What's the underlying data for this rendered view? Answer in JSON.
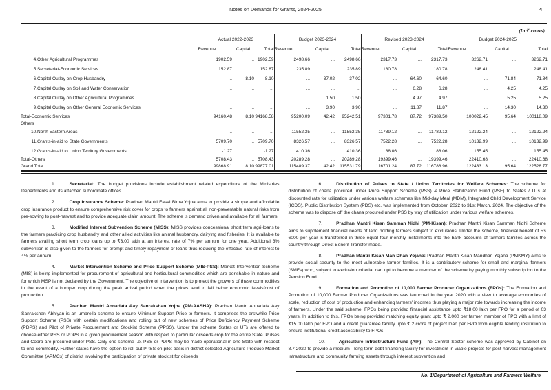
{
  "header": {
    "title": "Notes on Demands for Grants, 2024-2025",
    "page_number": "4"
  },
  "table": {
    "unit_note": "(In ₹ crores)",
    "groups": [
      "Actual 2022-2023",
      "Budget 2023-2024",
      "Revised 2023-2024",
      "Budget 2024-2025"
    ],
    "sub_headers": [
      "Revenue",
      "Capital",
      "Total"
    ],
    "rows": [
      {
        "num": "4.",
        "label": "Other Agricultural Programmes",
        "type": "item",
        "values": [
          "1902.59",
          "...",
          "1902.59",
          "2498.66",
          "...",
          "2498.66",
          "2317.73",
          "...",
          "2317.73",
          "3262.71",
          "...",
          "3262.71"
        ]
      },
      {
        "num": "5.",
        "label": "Secretariat-Economic Services",
        "type": "item",
        "values": [
          "152.87",
          "...",
          "152.87",
          "235.89",
          "...",
          "235.89",
          "180.78",
          "...",
          "180.78",
          "248.41",
          "...",
          "248.41"
        ]
      },
      {
        "num": "6.",
        "label": "Capital Outlay on Crop Husbandry",
        "type": "item",
        "values": [
          "...",
          "8.10",
          "8.10",
          "...",
          "37.02",
          "37.02",
          "...",
          "64.60",
          "64.60",
          "...",
          "71.84",
          "71.84"
        ]
      },
      {
        "num": "7.",
        "label": "Capital Outlay on Soil and Water Conservation",
        "type": "item",
        "values": [
          "...",
          "...",
          "...",
          "...",
          "...",
          "...",
          "...",
          "6.28",
          "6.28",
          "...",
          "4.25",
          "4.25"
        ]
      },
      {
        "num": "8.",
        "label": "Capital Outlay on Other Agricultural Programmes",
        "type": "item",
        "values": [
          "...",
          "...",
          "...",
          "...",
          "1.50",
          "1.50",
          "...",
          "4.97",
          "4.97",
          "...",
          "5.25",
          "5.25"
        ]
      },
      {
        "num": "9.",
        "label": "Capital Outlay on Other General Economic Services",
        "type": "item",
        "values": [
          "...",
          "...",
          "...",
          "...",
          "3.90",
          "3.90",
          "...",
          "11.87",
          "11.87",
          "...",
          "14.30",
          "14.30"
        ]
      },
      {
        "num": "",
        "label": "Total-Economic Services",
        "type": "total",
        "values": [
          "94160.48",
          "8.10",
          "94168.58",
          "95200.09",
          "42.42",
          "95242.51",
          "97301.78",
          "87.72",
          "97389.50",
          "100022.45",
          "95.64",
          "100118.09"
        ]
      },
      {
        "num": "",
        "label": "Others",
        "type": "section",
        "values": [
          "",
          "",
          "",
          "",
          "",
          "",
          "",
          "",
          "",
          "",
          "",
          ""
        ]
      },
      {
        "num": "10.",
        "label": "North Eastern Areas",
        "type": "item2",
        "values": [
          "...",
          "...",
          "...",
          "11552.35",
          "...",
          "11552.35",
          "11789.12",
          "...",
          "11789.12",
          "12122.24",
          "...",
          "12122.24"
        ]
      },
      {
        "num": "11.",
        "label": "Grants-in-aid to State Governments",
        "type": "item2",
        "values": [
          "5709.70",
          "...",
          "5709.70",
          "8326.57",
          "...",
          "8326.57",
          "7522.28",
          "...",
          "7522.28",
          "10132.99",
          "...",
          "10132.99"
        ]
      },
      {
        "num": "12.",
        "label": "Grants-in-aid to Union Territory Governments",
        "type": "item2",
        "values": [
          "-1.27",
          "...",
          "-1.27",
          "410.36",
          "...",
          "410.36",
          "88.06",
          "...",
          "88.06",
          "155.45",
          "...",
          "155.45"
        ]
      },
      {
        "num": "",
        "label": "Total-Others",
        "type": "tight",
        "values": [
          "5708.43",
          "...",
          "5708.43",
          "20289.28",
          "...",
          "20289.28",
          "19399.46",
          "...",
          "19399.46",
          "22410.68",
          "...",
          "22410.68"
        ]
      },
      {
        "num": "",
        "label": "Grand Total",
        "type": "grand",
        "values": [
          "99868.91",
          "8.10",
          "99877.01",
          "115489.37",
          "42.42",
          "115531.79",
          "116701.24",
          "87.72",
          "116788.96",
          "122433.13",
          "95.64",
          "122528.77"
        ]
      }
    ]
  },
  "paragraphs": {
    "left": [
      {
        "num": "1.",
        "title": "Secretariat:",
        "text": "The budget provisions include establishment related expenditure of the Ministries Departments and its attached subordinate offices"
      },
      {
        "num": "2.",
        "title": "Crop Insurance Scheme:",
        "text": "Pradhan Mantri Fasal Bima Yojna aims to provide a simple and affordable crop insurance product to ensure comprehensive risk cover for crops to farmers against all non-preventable natural risks from pre-sowing to post-harvest and to provide adequate claim amount. The scheme is demand driven and available for all farmers."
      },
      {
        "num": "3.",
        "title": "Modified Interest Subvention Scheme (MISS):",
        "text": "MISS provides concessional short term agri-loans to the farmers practicing crop husbandry and other allied activities like animal husbandry, dairying and fisheries. It is available to farmers availing short term crop loans up to ₹3.00 lakh at an interest rate of 7% per annum for one year. Additional 3% subvention is also given to the farmers for prompt and timely repayment of loans thus reducing the effective rate of interest to 4% per annum."
      },
      {
        "num": "4.",
        "title": "Market Intervention Scheme and Price Support Scheme (MIS-PSS):",
        "text": "Market Intervention Scheme (MIS) is being implemented for procurement of agricultural and horticultural commodities which are perishable in nature and for which MSP is not declared by the Government. The objective of intervention is to protect the growers of these commodities in the event of a bumper crop during the peak arrival period when the prices tend to fall below economic levels/cost of production."
      },
      {
        "num": "5.",
        "title": "Pradhan Mantri Annadata Aay Sanrakshan Yojna (PM-AASHA):",
        "text": "Pradhan Mantri Annadata Aay Sanrakshan Abhiyan is an umbrella scheme to ensure Minimum Support Price to farmers. It comprises the erstwhile Price Support Scheme (PSS) with certain modifications and rolling out of new schemes of Price Deficiency Payment Scheme (PDPS) and Pilot of Private Procurement and Stockist Scheme (PPSS). Under the scheme States or UTs are offered to choose either PSS or PDPS in a given procurement season with respect to particular oilseeds crop for the entire State. Pulses and Copra are procured under PSS. Only one scheme i.e. PSS or PDPS may be made operational in one State with respect to one commodity. Further states have the option to roll out PPSS on pilot basis in district selected Agriculture Produce Market Committee (APMCs) of district involving the participation of private stockist for oilseeds"
      }
    ],
    "right": [
      {
        "num": "6.",
        "title": "Distribution of Pulses to State / Union Territories for Welfare Schemes:",
        "text": "The scheme for distribution of chana procured under Price Support Scheme (PSS) & Price Stabilization Fund (PSF) to States / UTs at discounted rate for utilization under various welfare schemes like Mid-day Meal (MDM), Integrated Child Development Service (ICDS), Public Distribution System (PDS) etc. was implemented from October, 2022 to 31st March, 2024. The objective of the scheme was to dispose off the chana procured under PSS by way of utilization under various welfare schemes."
      },
      {
        "num": "7.",
        "title": "Pradhan Mantri Kisan Samman Nidhi (PM-Kisan):",
        "text": "Pradhan Mantri Kisan Samman Nidhi Scheme aims to supplement financial needs of land holding farmers subject to exclusions. Under the scheme, financial benefit of Rs 6000 per year is transferred in three equal four monthly installments into the bank accounts of farmers families across the country through Direct Benefit Transfer mode."
      },
      {
        "num": "8.",
        "title": "Pradhan Mantri Kisan Man Dhan Yojana:",
        "text": "Pradhan Mantri Kisan Mandhan Yojana (PMKMY) aims to provide social security to the most vulnerable farmer families. It is a contributory scheme for small and marginal farmers (SMFs) who, subject to exclusion criteria, can opt to become a member of the scheme by paying monthly subscription to the Pension Fund."
      },
      {
        "num": "9.",
        "title": "Formation and Promotion of 10,000 Farmer Producer Organizations (FPOs):",
        "text": "The Formation and Promotion of 10,000 Farmer Producer Organizations was launched in the year 2020 with a view to leverage economies of scale, reduction of cost of production and enhancing farmers' incomes thus playing a major role towards increasing the income of farmers. Under the said scheme, FPOs being provided financial assistance upto ₹18.00 lakh per FPO for a period of 03 years. In addition to this, FPOs being provided matching equity grant upto ₹ 2,000 per farmer member of FPO with a limit of ₹15.00 lakh per FPO and a credit guarantee facility upto ₹ 2 crore of project loan per FPO from eligible lending institution to ensure institutional credit accessibility to FPOs."
      },
      {
        "num": "10.",
        "title": "Agriculture Infrastructure Fund (AIF):",
        "text": "The Central Sector scheme was approved by Cabinet on 8.7.2020 to provide a medium - long term debt financing facility for investment in viable projects for post-harvest management Infrastructure and community farming assets through interest subvention and"
      }
    ]
  },
  "footer": {
    "signature": "No. 1/Department of Agriculture and Farmers Welfare"
  }
}
